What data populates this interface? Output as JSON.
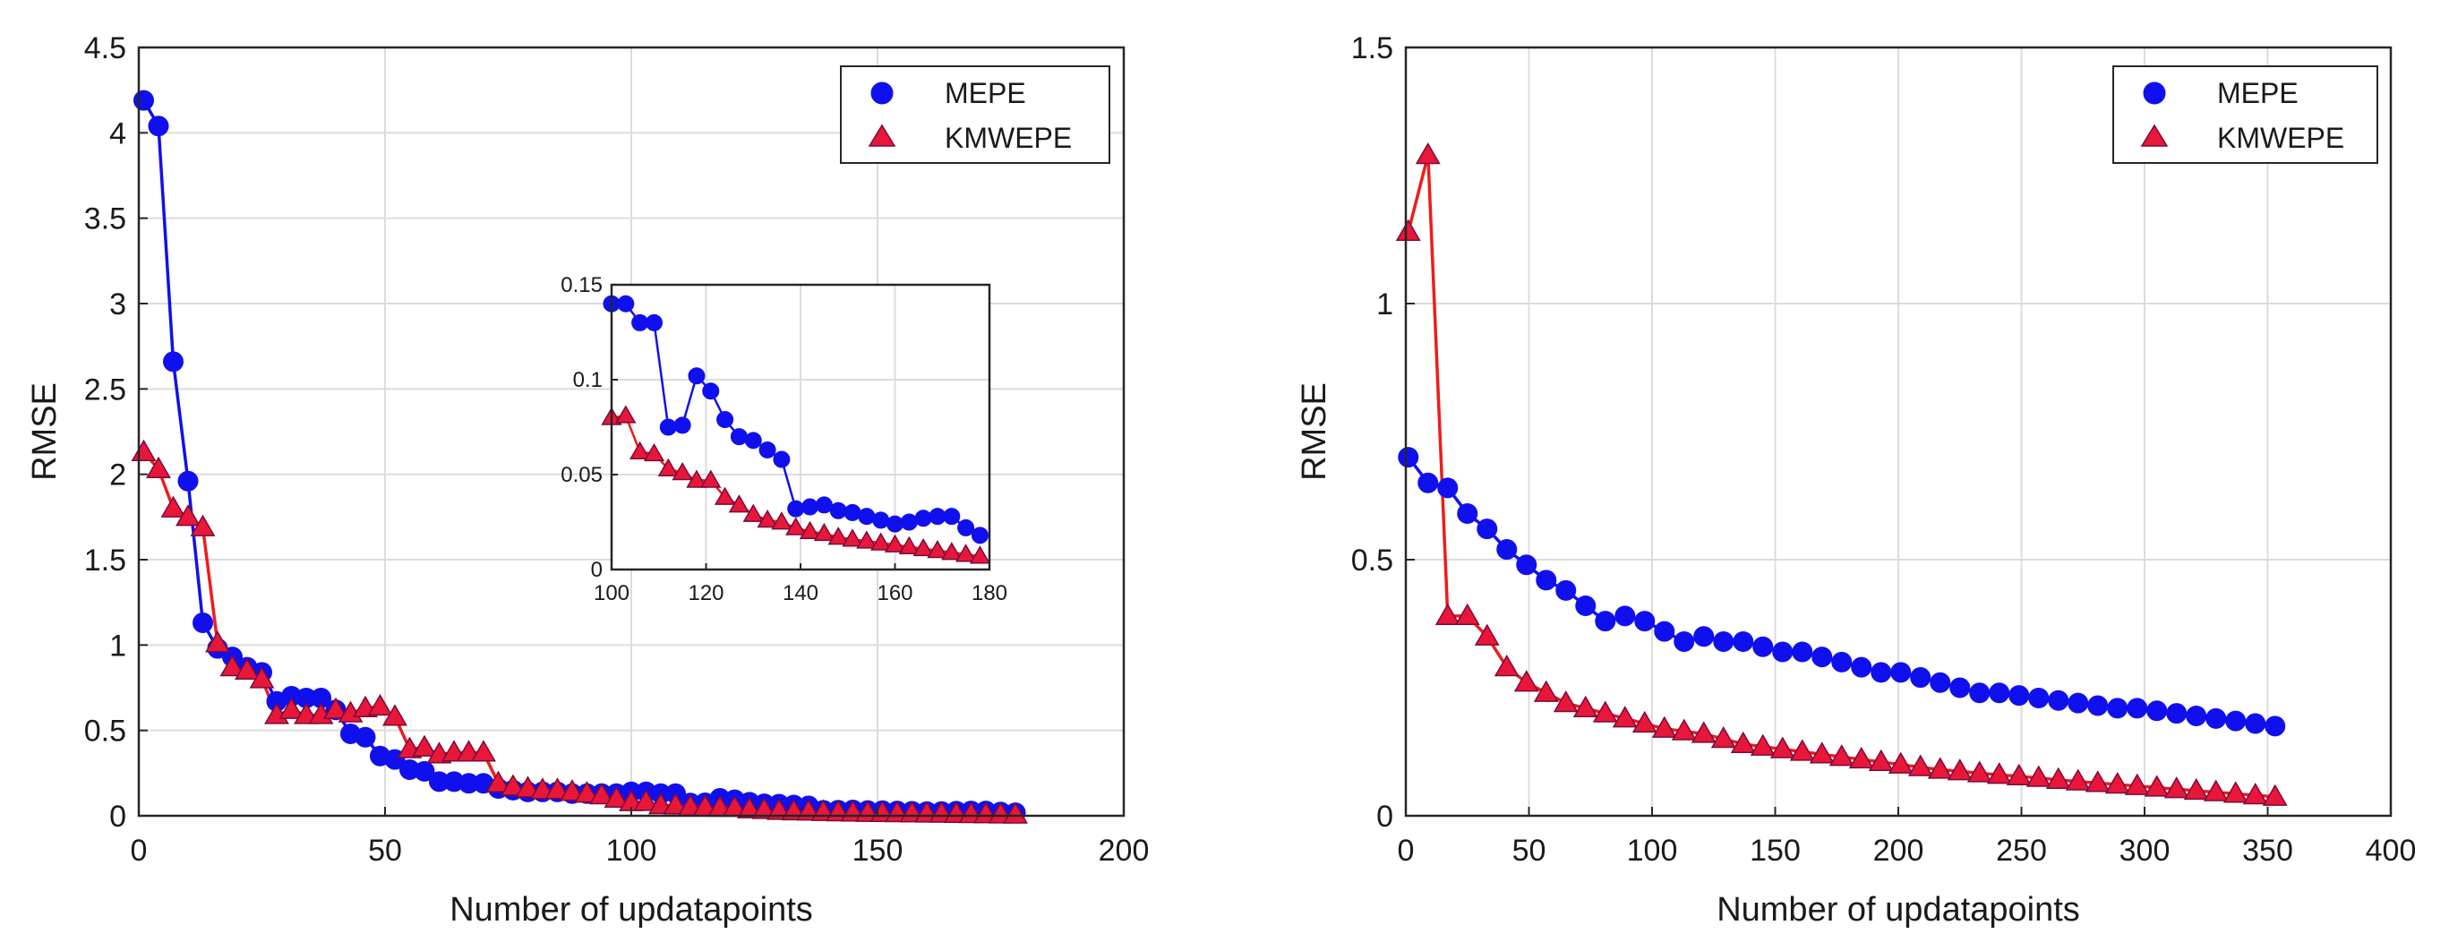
{
  "colors": {
    "mepe": "#1010ee",
    "kmwepe": "#ee1c1c",
    "marker_edge": "#7a0a3a"
  },
  "chart_data": [
    {
      "type": "line",
      "xlabel": "Number of updatapoints",
      "ylabel": "RMSE",
      "xlim": [
        0,
        200
      ],
      "ylim": [
        0,
        4.5
      ],
      "xticks": [
        0,
        50,
        100,
        150,
        200
      ],
      "yticks": [
        0,
        0.5,
        1,
        1.5,
        2,
        2.5,
        3,
        3.5,
        4,
        4.5
      ],
      "grid": true,
      "legend": {
        "position": "top-right",
        "entries": [
          "MEPE",
          "KMWEPE"
        ]
      },
      "series": [
        {
          "name": "MEPE",
          "marker": "circle",
          "x": [
            1,
            4,
            7,
            10,
            13,
            16,
            19,
            22,
            25,
            28,
            31,
            34,
            37,
            40,
            43,
            46,
            49,
            52,
            55,
            58,
            61,
            64,
            67,
            70,
            73,
            76,
            79,
            82,
            85,
            88,
            91,
            94,
            97,
            100,
            103,
            106,
            109,
            112,
            115,
            118,
            121,
            124,
            127,
            130,
            133,
            136,
            139,
            142,
            145,
            148,
            151,
            154,
            157,
            160,
            163,
            166,
            169,
            172,
            175,
            178
          ],
          "y": [
            4.19,
            4.04,
            2.66,
            1.96,
            1.13,
            0.98,
            0.93,
            0.87,
            0.84,
            0.67,
            0.7,
            0.69,
            0.69,
            0.62,
            0.48,
            0.46,
            0.35,
            0.33,
            0.27,
            0.26,
            0.2,
            0.2,
            0.19,
            0.19,
            0.16,
            0.15,
            0.14,
            0.14,
            0.14,
            0.13,
            0.13,
            0.13,
            0.13,
            0.14,
            0.14,
            0.13,
            0.13,
            0.075,
            0.076,
            0.102,
            0.094,
            0.079,
            0.07,
            0.068,
            0.063,
            0.058,
            0.032,
            0.033,
            0.034,
            0.031,
            0.03,
            0.028,
            0.026,
            0.024,
            0.025,
            0.027,
            0.028,
            0.028,
            0.022,
            0.018
          ]
        },
        {
          "name": "KMWEPE",
          "marker": "triangle",
          "x": [
            1,
            4,
            7,
            10,
            13,
            16,
            19,
            22,
            25,
            28,
            31,
            34,
            37,
            40,
            43,
            46,
            49,
            52,
            55,
            58,
            61,
            64,
            67,
            70,
            73,
            76,
            79,
            82,
            85,
            88,
            91,
            94,
            97,
            100,
            103,
            106,
            109,
            112,
            115,
            118,
            121,
            124,
            127,
            130,
            133,
            136,
            139,
            142,
            145,
            148,
            151,
            154,
            157,
            160,
            163,
            166,
            169,
            172,
            175,
            178
          ],
          "y": [
            2.13,
            2.03,
            1.8,
            1.75,
            1.69,
            1.01,
            0.87,
            0.85,
            0.8,
            0.59,
            0.62,
            0.59,
            0.59,
            0.62,
            0.6,
            0.63,
            0.64,
            0.58,
            0.39,
            0.4,
            0.36,
            0.37,
            0.37,
            0.37,
            0.19,
            0.17,
            0.16,
            0.15,
            0.15,
            0.14,
            0.13,
            0.12,
            0.1,
            0.08,
            0.081,
            0.062,
            0.061,
            0.053,
            0.051,
            0.047,
            0.047,
            0.038,
            0.034,
            0.029,
            0.026,
            0.025,
            0.022,
            0.02,
            0.019,
            0.017,
            0.016,
            0.015,
            0.014,
            0.013,
            0.012,
            0.011,
            0.01,
            0.009,
            0.008,
            0.007
          ]
        }
      ],
      "inset": {
        "xlim": [
          100,
          180
        ],
        "ylim": [
          0,
          0.15
        ],
        "xticks": [
          100,
          120,
          140,
          160,
          180
        ],
        "yticks": [
          0,
          0.05,
          0.1,
          0.15
        ]
      }
    },
    {
      "type": "line",
      "xlabel": "Number of updatapoints",
      "ylabel": "RMSE",
      "xlim": [
        0,
        400
      ],
      "ylim": [
        0,
        1.5
      ],
      "xticks": [
        0,
        50,
        100,
        150,
        200,
        250,
        300,
        350,
        400
      ],
      "yticks": [
        0,
        0.5,
        1,
        1.5
      ],
      "grid": true,
      "legend": {
        "position": "top-right",
        "entries": [
          "MEPE",
          "KMWEPE"
        ]
      },
      "series": [
        {
          "name": "MEPE",
          "marker": "circle",
          "x": [
            1,
            9,
            17,
            25,
            33,
            41,
            49,
            57,
            65,
            73,
            81,
            89,
            97,
            105,
            113,
            121,
            129,
            137,
            145,
            153,
            161,
            169,
            177,
            185,
            193,
            201,
            209,
            217,
            225,
            233,
            241,
            249,
            257,
            265,
            273,
            281,
            289,
            297,
            305,
            313,
            321,
            329,
            337,
            345,
            353
          ],
          "y": [
            0.7,
            0.65,
            0.64,
            0.59,
            0.56,
            0.52,
            0.49,
            0.46,
            0.44,
            0.41,
            0.38,
            0.39,
            0.38,
            0.36,
            0.34,
            0.35,
            0.34,
            0.34,
            0.33,
            0.32,
            0.32,
            0.31,
            0.3,
            0.29,
            0.28,
            0.28,
            0.27,
            0.26,
            0.25,
            0.24,
            0.24,
            0.235,
            0.23,
            0.225,
            0.22,
            0.215,
            0.21,
            0.21,
            0.205,
            0.2,
            0.195,
            0.19,
            0.185,
            0.18,
            0.175
          ]
        },
        {
          "name": "KMWEPE",
          "marker": "triangle",
          "x": [
            1,
            9,
            17,
            25,
            33,
            41,
            49,
            57,
            65,
            73,
            81,
            89,
            97,
            105,
            113,
            121,
            129,
            137,
            145,
            153,
            161,
            169,
            177,
            185,
            193,
            201,
            209,
            217,
            225,
            233,
            241,
            249,
            257,
            265,
            273,
            281,
            289,
            297,
            305,
            313,
            321,
            329,
            337,
            345,
            353
          ],
          "y": [
            1.14,
            1.29,
            0.39,
            0.39,
            0.35,
            0.29,
            0.26,
            0.24,
            0.22,
            0.21,
            0.2,
            0.19,
            0.18,
            0.17,
            0.165,
            0.16,
            0.15,
            0.14,
            0.135,
            0.13,
            0.125,
            0.12,
            0.115,
            0.11,
            0.105,
            0.1,
            0.095,
            0.09,
            0.087,
            0.083,
            0.08,
            0.077,
            0.074,
            0.07,
            0.067,
            0.064,
            0.061,
            0.058,
            0.055,
            0.052,
            0.049,
            0.046,
            0.043,
            0.04,
            0.037
          ]
        }
      ]
    }
  ]
}
